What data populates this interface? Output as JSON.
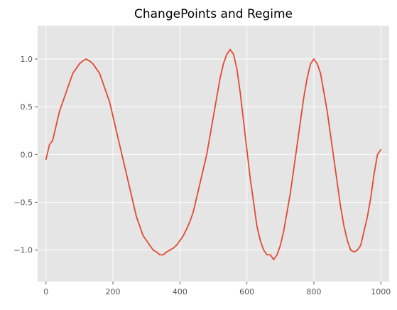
{
  "chart_data": {
    "type": "line",
    "title": "ChangePoints and Regime",
    "xlabel": "",
    "ylabel": "",
    "xlim": [
      -25,
      1025
    ],
    "ylim": [
      -1.33,
      1.35
    ],
    "x_ticks": [
      0,
      200,
      400,
      600,
      800,
      1000
    ],
    "x_tick_labels": [
      "0",
      "200",
      "400",
      "600",
      "800",
      "1000"
    ],
    "y_ticks": [
      -1.0,
      -0.5,
      0.0,
      0.5,
      1.0
    ],
    "y_tick_labels": [
      "−1.0",
      "−0.5",
      "0.0",
      "0.5",
      "1.0"
    ],
    "grid": true,
    "style": "ggplot",
    "colors": {
      "line": "#E24A33",
      "background": "#E5E5E5",
      "grid": "#FFFFFF"
    },
    "series": [
      {
        "x": [
          0,
          10,
          20,
          30,
          40,
          50,
          60,
          70,
          80,
          90,
          100,
          110,
          120,
          130,
          140,
          150,
          160,
          170,
          180,
          190,
          200,
          210,
          220,
          230,
          240,
          250,
          260,
          270,
          280,
          290,
          300,
          310,
          320,
          330,
          340,
          350,
          360,
          370,
          380,
          390,
          400,
          410,
          420,
          430,
          440,
          450,
          460,
          470,
          480,
          490,
          500,
          510,
          520,
          530,
          540,
          550,
          560,
          570,
          580,
          590,
          600,
          610,
          620,
          630,
          640,
          650,
          660,
          670,
          680,
          690,
          700,
          710,
          720,
          730,
          740,
          750,
          760,
          770,
          780,
          790,
          800,
          810,
          820,
          830,
          840,
          850,
          860,
          870,
          880,
          890,
          900,
          910,
          920,
          930,
          940,
          950,
          960,
          970,
          980,
          990,
          1000
        ],
        "values": [
          -0.05,
          0.1,
          0.15,
          0.3,
          0.45,
          0.55,
          0.65,
          0.75,
          0.85,
          0.9,
          0.95,
          0.98,
          1.0,
          0.98,
          0.95,
          0.9,
          0.85,
          0.75,
          0.65,
          0.55,
          0.4,
          0.25,
          0.1,
          -0.05,
          -0.2,
          -0.35,
          -0.5,
          -0.65,
          -0.75,
          -0.85,
          -0.9,
          -0.95,
          -1.0,
          -1.02,
          -1.05,
          -1.05,
          -1.02,
          -1.0,
          -0.98,
          -0.95,
          -0.9,
          -0.85,
          -0.78,
          -0.7,
          -0.6,
          -0.45,
          -0.3,
          -0.15,
          0.0,
          0.2,
          0.4,
          0.6,
          0.8,
          0.95,
          1.05,
          1.1,
          1.05,
          0.9,
          0.65,
          0.35,
          0.05,
          -0.25,
          -0.5,
          -0.75,
          -0.9,
          -1.0,
          -1.05,
          -1.05,
          -1.1,
          -1.05,
          -0.95,
          -0.8,
          -0.6,
          -0.4,
          -0.15,
          0.1,
          0.35,
          0.6,
          0.8,
          0.95,
          1.0,
          0.95,
          0.85,
          0.65,
          0.45,
          0.2,
          -0.05,
          -0.3,
          -0.55,
          -0.75,
          -0.9,
          -1.0,
          -1.02,
          -1.0,
          -0.95,
          -0.8,
          -0.65,
          -0.45,
          -0.2,
          0.0,
          0.05
        ]
      }
    ]
  }
}
